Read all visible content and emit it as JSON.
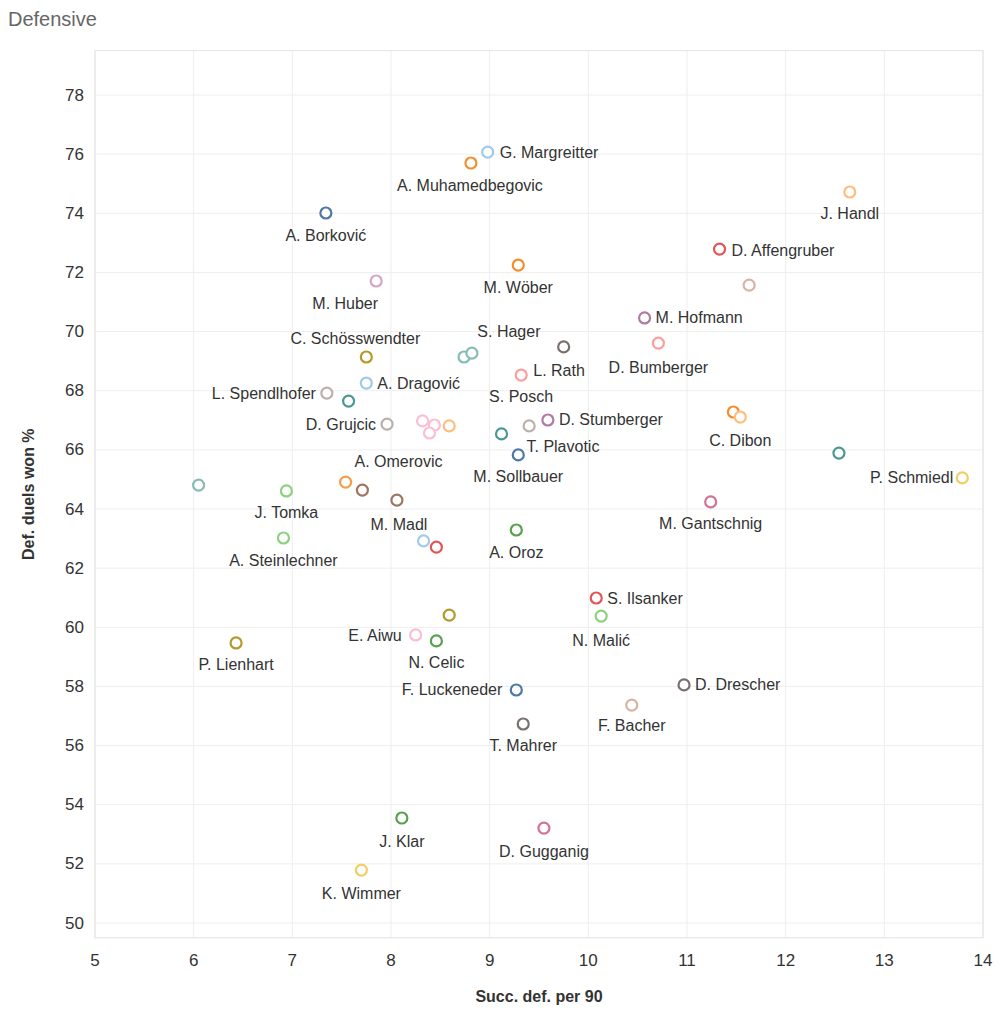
{
  "chart_data": {
    "type": "scatter",
    "title": "Defensive",
    "x_label": "Succ. def. per 90",
    "y_label": "Def. duels won %",
    "xlim": [
      5,
      14
    ],
    "ylim": [
      49.5,
      79.5
    ],
    "xticks": [
      5,
      6,
      7,
      8,
      9,
      10,
      11,
      12,
      13,
      14
    ],
    "yticks": [
      50,
      52,
      54,
      56,
      58,
      60,
      62,
      64,
      66,
      68,
      70,
      72,
      74,
      76,
      78
    ],
    "grid": true,
    "marker": "circle",
    "x": [
      8.98,
      8.81,
      7.34,
      12.65,
      11.33,
      11.63,
      9.29,
      7.85,
      10.57,
      10.71,
      9.75,
      7.75,
      8.74,
      8.82,
      7.75,
      7.35,
      7.57,
      9.32,
      9.4,
      9.59,
      7.96,
      8.32,
      8.44,
      8.39,
      8.59,
      9.12,
      9.29,
      11.47,
      11.54,
      12.54,
      13.79,
      11.24,
      6.05,
      6.94,
      7.54,
      7.71,
      8.06,
      6.91,
      9.27,
      8.33,
      8.46,
      10.08,
      8.59,
      10.13,
      8.25,
      8.46,
      6.43,
      9.27,
      10.97,
      10.44,
      9.34,
      8.11,
      9.55,
      7.7
    ],
    "values": [
      76.07,
      75.7,
      74.01,
      74.72,
      72.79,
      71.57,
      72.25,
      71.71,
      70.46,
      69.61,
      69.48,
      69.14,
      69.14,
      69.27,
      68.26,
      67.92,
      67.65,
      68.53,
      66.81,
      67.01,
      66.87,
      66.98,
      66.84,
      66.57,
      66.81,
      66.54,
      65.83,
      67.28,
      67.11,
      65.89,
      65.05,
      64.24,
      64.81,
      64.61,
      64.91,
      64.64,
      64.3,
      63.02,
      63.29,
      62.92,
      62.71,
      60.99,
      60.41,
      60.38,
      59.74,
      59.54,
      59.47,
      57.88,
      58.05,
      57.37,
      56.73,
      53.55,
      53.21,
      51.79
    ],
    "labels": [
      "G. Margreitter",
      "A. Muhamedbegovic",
      "A. Borković",
      "J. Handl",
      "D. Affengruber",
      null,
      "M. Wöber",
      "M. Huber",
      "M. Hofmann",
      "D. Bumberger",
      null,
      "C. Schösswendter",
      null,
      "S. Hager",
      "A. Dragović",
      "L. Spendlhofer",
      null,
      "L. Rath",
      "S. Posch",
      "D. Stumberger",
      "D. Grujcic",
      null,
      null,
      "A. Omerovic",
      null,
      "T. Plavotic",
      "M. Sollbauer",
      null,
      "C. Dibon",
      null,
      "P. Schmiedl",
      "M. Gantschnig",
      null,
      "J. Tomka",
      null,
      null,
      "M. Madl",
      "A. Steinlechner",
      "A. Oroz",
      null,
      null,
      "S. Ilsanker",
      null,
      "N. Malić",
      "E. Aiwu",
      "N. Celic",
      "P. Lienhart",
      "F. Luckeneder",
      "D. Drescher",
      "F. Bacher",
      "T. Mahrer",
      "J. Klar",
      "D. Gugganig",
      "K. Wimmer"
    ],
    "colors": [
      "#a0cbe8",
      "#f28e2b",
      "#4e79a7",
      "#ffbe7d",
      "#e15759",
      "#d7b5a6",
      "#f28e2b",
      "#d4a6c8",
      "#b07aa1",
      "#ff9d9a",
      "#79706e",
      "#b6992d",
      "#86bcb6",
      "#86bcb6",
      "#a0cbe8",
      "#bab0ac",
      "#499894",
      "#ff9d9a",
      "#bab0ac",
      "#b07aa1",
      "#bab0ac",
      "#fabfd2",
      "#fabfd2",
      "#fabfd2",
      "#ffbe7d",
      "#499894",
      "#4e79a7",
      "#f28e2b",
      "#ffbe7d",
      "#499894",
      "#f1ce63",
      "#d37295",
      "#86bcb6",
      "#8cd17d",
      "#f0a04b",
      "#9d7660",
      "#9d7660",
      "#8cd17d",
      "#59a14f",
      "#a0cbe8",
      "#e15759",
      "#e15759",
      "#b6992d",
      "#8cd17d",
      "#fabfd2",
      "#59a14f",
      "#b6992d",
      "#4e79a7",
      "#79706e",
      "#d7b5a6",
      "#79706e",
      "#59a14f",
      "#d37295",
      "#f1ce63"
    ]
  }
}
